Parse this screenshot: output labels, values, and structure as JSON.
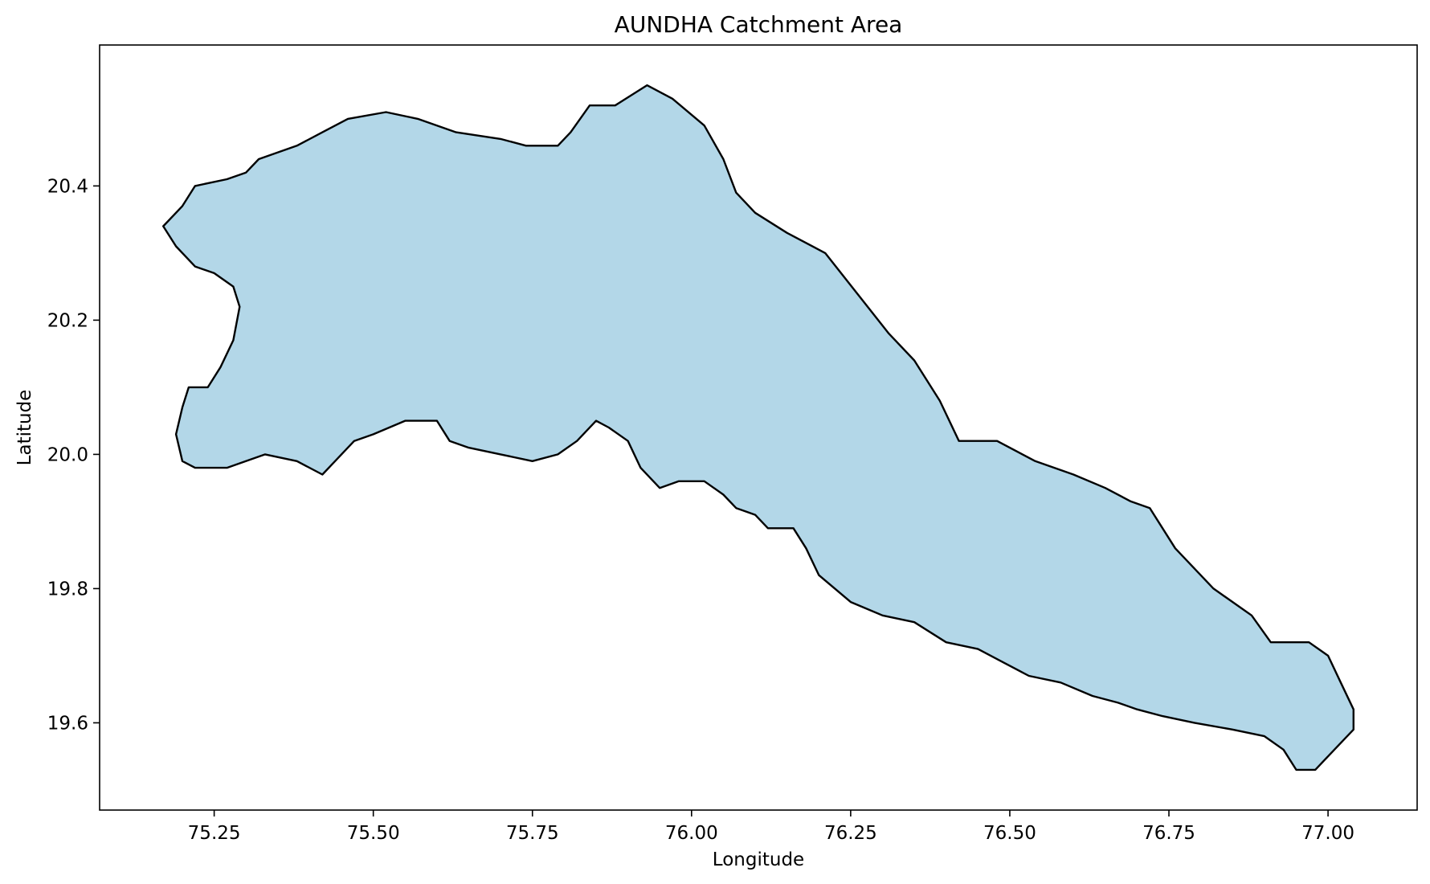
{
  "chart_data": {
    "type": "map",
    "title": "AUNDHA Catchment Area",
    "xlabel": "Longitude",
    "ylabel": "Latitude",
    "xlim": [
      75.07,
      77.14
    ],
    "ylim": [
      19.47,
      20.61
    ],
    "x_ticks": [
      75.25,
      75.5,
      75.75,
      76.0,
      76.25,
      76.5,
      76.75,
      77.0
    ],
    "x_tick_labels": [
      "75.25",
      "75.50",
      "75.75",
      "76.00",
      "76.25",
      "76.50",
      "76.75",
      "77.00"
    ],
    "y_ticks": [
      19.6,
      19.8,
      20.0,
      20.2,
      20.4
    ],
    "y_tick_labels": [
      "19.6",
      "19.8",
      "20.0",
      "20.2",
      "20.4"
    ],
    "grid": false,
    "fill_color": "#b3d7e8",
    "edge_color": "#000000",
    "boundary": [
      [
        75.17,
        20.34
      ],
      [
        75.2,
        20.37
      ],
      [
        75.22,
        20.4
      ],
      [
        75.27,
        20.41
      ],
      [
        75.3,
        20.42
      ],
      [
        75.32,
        20.44
      ],
      [
        75.38,
        20.46
      ],
      [
        75.42,
        20.48
      ],
      [
        75.46,
        20.5
      ],
      [
        75.52,
        20.51
      ],
      [
        75.57,
        20.5
      ],
      [
        75.63,
        20.48
      ],
      [
        75.7,
        20.47
      ],
      [
        75.74,
        20.46
      ],
      [
        75.79,
        20.46
      ],
      [
        75.81,
        20.48
      ],
      [
        75.84,
        20.52
      ],
      [
        75.88,
        20.52
      ],
      [
        75.93,
        20.55
      ],
      [
        75.97,
        20.53
      ],
      [
        76.02,
        20.49
      ],
      [
        76.05,
        20.44
      ],
      [
        76.07,
        20.39
      ],
      [
        76.1,
        20.36
      ],
      [
        76.15,
        20.33
      ],
      [
        76.21,
        20.3
      ],
      [
        76.26,
        20.24
      ],
      [
        76.31,
        20.18
      ],
      [
        76.35,
        20.14
      ],
      [
        76.39,
        20.08
      ],
      [
        76.42,
        20.02
      ],
      [
        76.48,
        20.02
      ],
      [
        76.54,
        19.99
      ],
      [
        76.6,
        19.97
      ],
      [
        76.65,
        19.95
      ],
      [
        76.69,
        19.93
      ],
      [
        76.72,
        19.92
      ],
      [
        76.76,
        19.86
      ],
      [
        76.82,
        19.8
      ],
      [
        76.88,
        19.76
      ],
      [
        76.91,
        19.72
      ],
      [
        76.97,
        19.72
      ],
      [
        77.0,
        19.7
      ],
      [
        77.02,
        19.66
      ],
      [
        77.04,
        19.62
      ],
      [
        77.04,
        19.59
      ],
      [
        77.01,
        19.56
      ],
      [
        76.98,
        19.53
      ],
      [
        76.95,
        19.53
      ],
      [
        76.93,
        19.56
      ],
      [
        76.9,
        19.58
      ],
      [
        76.85,
        19.59
      ],
      [
        76.79,
        19.6
      ],
      [
        76.74,
        19.61
      ],
      [
        76.7,
        19.62
      ],
      [
        76.67,
        19.63
      ],
      [
        76.63,
        19.64
      ],
      [
        76.58,
        19.66
      ],
      [
        76.53,
        19.67
      ],
      [
        76.49,
        19.69
      ],
      [
        76.45,
        19.71
      ],
      [
        76.4,
        19.72
      ],
      [
        76.35,
        19.75
      ],
      [
        76.3,
        19.76
      ],
      [
        76.25,
        19.78
      ],
      [
        76.2,
        19.82
      ],
      [
        76.18,
        19.86
      ],
      [
        76.16,
        19.89
      ],
      [
        76.12,
        19.89
      ],
      [
        76.1,
        19.91
      ],
      [
        76.07,
        19.92
      ],
      [
        76.05,
        19.94
      ],
      [
        76.02,
        19.96
      ],
      [
        75.98,
        19.96
      ],
      [
        75.95,
        19.95
      ],
      [
        75.92,
        19.98
      ],
      [
        75.9,
        20.02
      ],
      [
        75.87,
        20.04
      ],
      [
        75.85,
        20.05
      ],
      [
        75.82,
        20.02
      ],
      [
        75.79,
        20.0
      ],
      [
        75.75,
        19.99
      ],
      [
        75.7,
        20.0
      ],
      [
        75.65,
        20.01
      ],
      [
        75.62,
        20.02
      ],
      [
        75.6,
        20.05
      ],
      [
        75.55,
        20.05
      ],
      [
        75.5,
        20.03
      ],
      [
        75.47,
        20.02
      ],
      [
        75.44,
        19.99
      ],
      [
        75.42,
        19.97
      ],
      [
        75.38,
        19.99
      ],
      [
        75.33,
        20.0
      ],
      [
        75.3,
        19.99
      ],
      [
        75.27,
        19.98
      ],
      [
        75.22,
        19.98
      ],
      [
        75.2,
        19.99
      ],
      [
        75.19,
        20.03
      ],
      [
        75.2,
        20.07
      ],
      [
        75.21,
        20.1
      ],
      [
        75.24,
        20.1
      ],
      [
        75.26,
        20.13
      ],
      [
        75.28,
        20.17
      ],
      [
        75.29,
        20.22
      ],
      [
        75.28,
        20.25
      ],
      [
        75.25,
        20.27
      ],
      [
        75.22,
        20.28
      ],
      [
        75.19,
        20.31
      ]
    ]
  }
}
